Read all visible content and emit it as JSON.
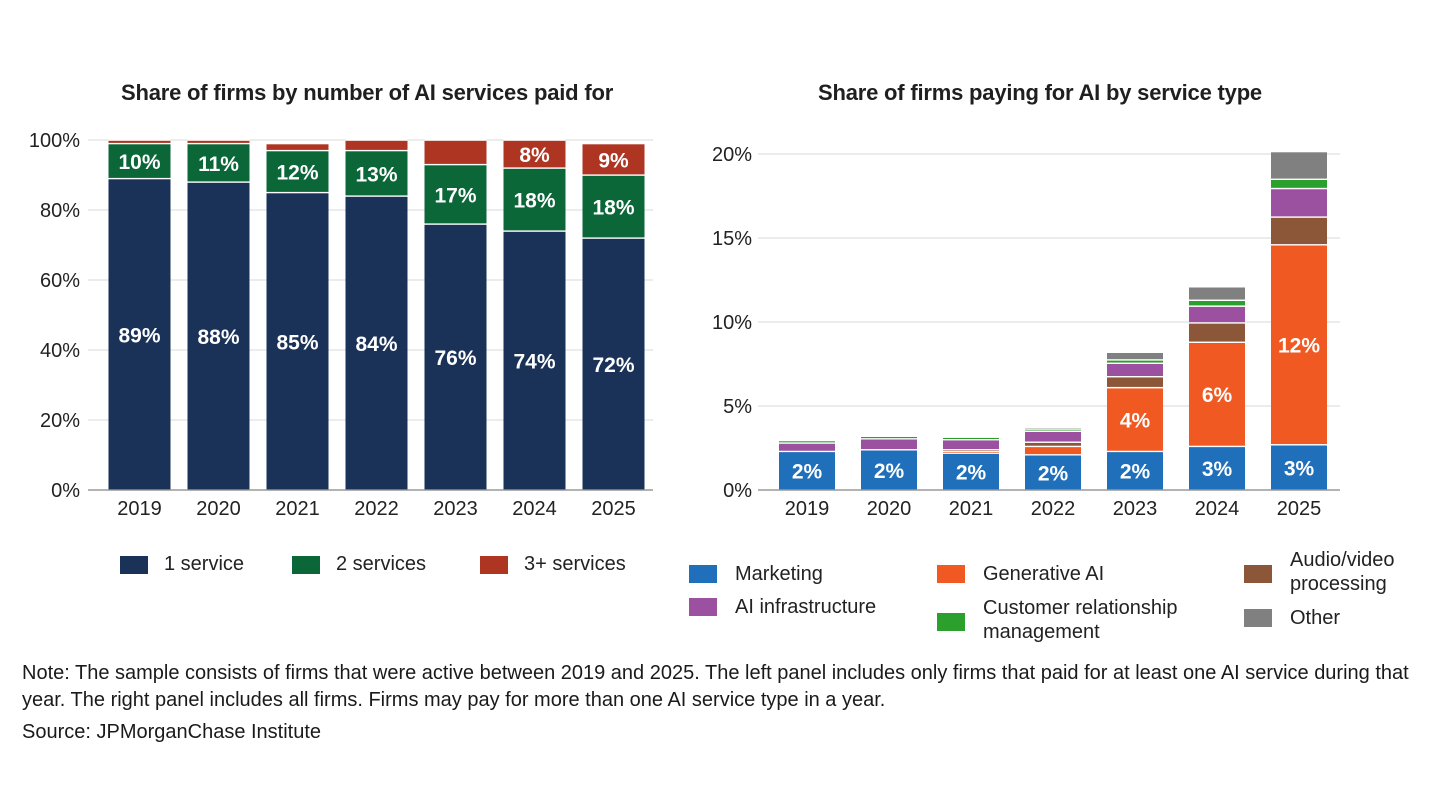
{
  "chart_data": [
    {
      "type": "bar",
      "stacked": true,
      "title": "Share of firms by number of AI services paid for",
      "xlabel": "",
      "ylabel": "",
      "ylim": [
        0,
        100
      ],
      "y_ticks": [
        "0%",
        "20%",
        "40%",
        "60%",
        "80%",
        "100%"
      ],
      "y_tick_values": [
        0,
        20,
        40,
        60,
        80,
        100
      ],
      "grid": true,
      "legend_position": "bottom",
      "categories": [
        "2019",
        "2020",
        "2021",
        "2022",
        "2023",
        "2024",
        "2025"
      ],
      "series": [
        {
          "name": "1 service",
          "color": "#1a3158",
          "values": [
            89,
            88,
            85,
            84,
            76,
            74,
            72
          ],
          "labels": [
            "89%",
            "88%",
            "85%",
            "84%",
            "76%",
            "74%",
            "72%"
          ]
        },
        {
          "name": "2 services",
          "color": "#0b6638",
          "values": [
            10,
            11,
            12,
            13,
            17,
            18,
            18
          ],
          "labels": [
            "10%",
            "11%",
            "12%",
            "13%",
            "17%",
            "18%",
            "18%"
          ]
        },
        {
          "name": "3+ services",
          "color": "#ae3522",
          "values": [
            1,
            1,
            2,
            3,
            7,
            8,
            9
          ],
          "labels": [
            "",
            "",
            "",
            "",
            "",
            "8%",
            "9%"
          ]
        }
      ]
    },
    {
      "type": "bar",
      "stacked": true,
      "title": "Share of firms paying for AI by service type",
      "xlabel": "",
      "ylabel": "",
      "ylim": [
        0,
        21
      ],
      "y_ticks": [
        "0%",
        "5%",
        "10%",
        "15%",
        "20%"
      ],
      "y_tick_values": [
        0,
        5,
        10,
        15,
        20
      ],
      "grid": true,
      "legend_position": "bottom",
      "categories": [
        "2019",
        "2020",
        "2021",
        "2022",
        "2023",
        "2024",
        "2025"
      ],
      "series": [
        {
          "name": "Marketing",
          "color": "#1f6fba",
          "values": [
            2.3,
            2.4,
            2.2,
            2.1,
            2.3,
            2.6,
            2.7
          ],
          "labels": [
            "2%",
            "2%",
            "2%",
            "2%",
            "2%",
            "3%",
            "3%"
          ]
        },
        {
          "name": "Generative AI",
          "color": "#f05a22",
          "values": [
            0,
            0,
            0.1,
            0.5,
            3.8,
            6.2,
            11.9
          ],
          "labels": [
            "",
            "",
            "",
            "",
            "4%",
            "6%",
            "12%"
          ]
        },
        {
          "name": "Audio/video processing",
          "color": "#8b5738",
          "values": [
            0,
            0,
            0.1,
            0.25,
            0.65,
            1.15,
            1.65
          ],
          "labels": [
            "",
            "",
            "",
            "",
            "",
            "",
            ""
          ]
        },
        {
          "name": "AI infrastructure",
          "color": "#9b51a0",
          "values": [
            0.5,
            0.65,
            0.6,
            0.65,
            0.8,
            1.0,
            1.7
          ],
          "labels": [
            "",
            "",
            "",
            "",
            "",
            "",
            ""
          ]
        },
        {
          "name": "Customer relationship management",
          "color": "#2ca02c",
          "values": [
            0.15,
            0.15,
            0.15,
            0.1,
            0.2,
            0.35,
            0.55
          ],
          "labels": [
            "",
            "",
            "",
            "",
            "",
            "",
            ""
          ]
        },
        {
          "name": "Other",
          "color": "#808080",
          "values": [
            0,
            0,
            0,
            0.1,
            0.45,
            0.8,
            1.65
          ],
          "labels": [
            "",
            "",
            "",
            "",
            "",
            "",
            ""
          ]
        }
      ]
    }
  ],
  "legends": {
    "left": [
      "1 service",
      "2 services",
      "3+ services"
    ],
    "right": {
      "marketing": "Marketing",
      "ai_infrastructure": "AI infrastructure",
      "generative_ai": "Generative AI",
      "crm_line1": "Customer relationship",
      "crm_line2": "management",
      "audio_line1": "Audio/video",
      "audio_line2": "processing",
      "other": "Other"
    }
  },
  "notes": {
    "note": "Note: The sample consists of firms that were active between 2019 and 2025. The left panel includes only firms that paid for at least one AI service during that year. The right panel includes all firms. Firms may pay for more than one AI service type in a year.",
    "source": "Source: JPMorganChase Institute"
  }
}
